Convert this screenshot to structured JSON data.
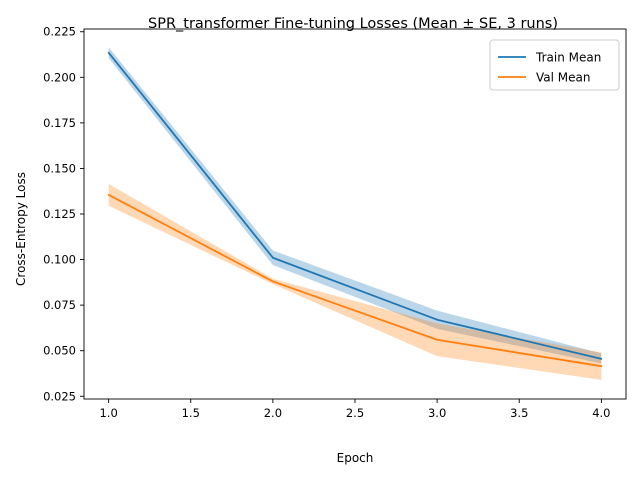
{
  "chart_data": {
    "type": "line",
    "title": "SPR_transformer Fine-tuning Losses (Mean ± SE, 3 runs)",
    "xlabel": "Epoch",
    "ylabel": "Cross-Entropy Loss",
    "xlim": [
      0.85,
      4.15
    ],
    "ylim": [
      0.0235,
      0.2265
    ],
    "xticks": [
      1.0,
      1.5,
      2.0,
      2.5,
      3.0,
      3.5,
      4.0
    ],
    "xtick_labels": [
      "1.0",
      "1.5",
      "2.0",
      "2.5",
      "3.0",
      "3.5",
      "4.0"
    ],
    "yticks": [
      0.025,
      0.05,
      0.075,
      0.1,
      0.125,
      0.15,
      0.175,
      0.2,
      0.225
    ],
    "ytick_labels": [
      "0.025",
      "0.050",
      "0.075",
      "0.100",
      "0.125",
      "0.150",
      "0.175",
      "0.200",
      "0.225"
    ],
    "grid": false,
    "legend_position": "top-right",
    "x": [
      1,
      2,
      3,
      4
    ],
    "series": [
      {
        "name": "Train Mean",
        "color": "#1f77b4",
        "values": [
          0.2135,
          0.101,
          0.067,
          0.0455
        ],
        "lower": [
          0.2105,
          0.097,
          0.062,
          0.043
        ],
        "upper": [
          0.2165,
          0.105,
          0.072,
          0.0485
        ]
      },
      {
        "name": "Val Mean",
        "color": "#ff7f0e",
        "values": [
          0.1355,
          0.088,
          0.056,
          0.0415
        ],
        "lower": [
          0.1295,
          0.0865,
          0.047,
          0.034
        ],
        "upper": [
          0.1415,
          0.0895,
          0.065,
          0.049
        ]
      }
    ]
  }
}
